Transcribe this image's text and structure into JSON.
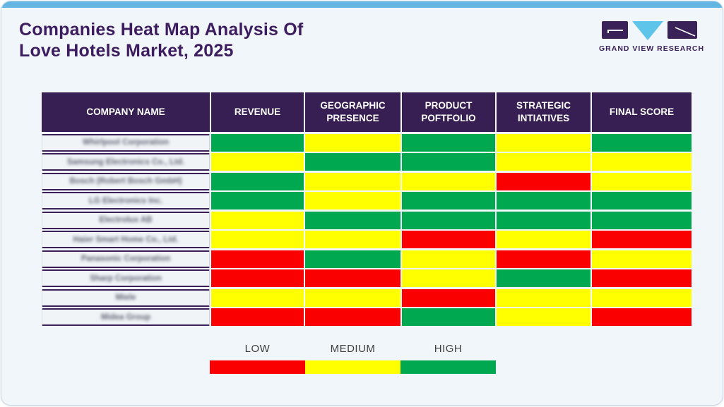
{
  "header": {
    "title_line1": "Companies Heat Map Analysis Of",
    "title_line2": "Love Hotels Market, 2025",
    "logo_text": "GRAND VIEW RESEARCH"
  },
  "table": {
    "columns": [
      "COMPANY NAME",
      "REVENUE",
      "GEOGRAPHIC PRESENCE",
      "PRODUCT POFTFOLIO",
      "STRATEGIC INTIATIVES",
      "FINAL SCORE"
    ],
    "rows": [
      {
        "company": "Whirlpool Corporation",
        "values": [
          "high",
          "medium",
          "high",
          "medium",
          "high"
        ]
      },
      {
        "company": "Samsung Electronics Co., Ltd.",
        "values": [
          "medium",
          "high",
          "high",
          "medium",
          "medium"
        ]
      },
      {
        "company": "Bosch (Robert Bosch GmbH)",
        "values": [
          "high",
          "medium",
          "medium",
          "low",
          "medium"
        ]
      },
      {
        "company": "LG Electronics Inc.",
        "values": [
          "high",
          "medium",
          "high",
          "high",
          "high"
        ]
      },
      {
        "company": "Electrolux AB",
        "values": [
          "medium",
          "high",
          "high",
          "high",
          "high"
        ]
      },
      {
        "company": "Haier Smart Home Co., Ltd.",
        "values": [
          "medium",
          "medium",
          "low",
          "medium",
          "low"
        ]
      },
      {
        "company": "Panasonic Corporation",
        "values": [
          "low",
          "high",
          "medium",
          "low",
          "medium"
        ]
      },
      {
        "company": "Sharp Corporation",
        "values": [
          "low",
          "low",
          "medium",
          "high",
          "low"
        ]
      },
      {
        "company": "Miele",
        "values": [
          "medium",
          "medium",
          "low",
          "medium",
          "medium"
        ]
      },
      {
        "company": "Midea Group",
        "values": [
          "low",
          "low",
          "high",
          "medium",
          "low"
        ]
      }
    ]
  },
  "legend": {
    "items": [
      {
        "key": "low",
        "label": "LOW",
        "color": "#FB0000"
      },
      {
        "key": "medium",
        "label": "MEDIUM",
        "color": "#FFFF00"
      },
      {
        "key": "high",
        "label": "HIGH",
        "color": "#00A94F"
      }
    ]
  },
  "colors": {
    "accent_purple": "#381F53",
    "title_purple": "#3D1D60",
    "topbar_blue": "#63B5E2",
    "logo_cyan": "#5FC4EA",
    "card_bg": "#F1F6FA",
    "card_border": "#C5D7E6",
    "cell_red": "#FB0000",
    "cell_yellow": "#FFFF00",
    "cell_green": "#00A94F"
  },
  "chart_data": {
    "type": "heatmap",
    "title": "Companies Heat Map Analysis Of Love Hotels Market, 2025",
    "x_categories": [
      "REVENUE",
      "GEOGRAPHIC PRESENCE",
      "PRODUCT POFTFOLIO",
      "STRATEGIC INTIATIVES",
      "FINAL SCORE"
    ],
    "y_categories": [
      "Whirlpool Corporation",
      "Samsung Electronics Co., Ltd.",
      "Bosch (Robert Bosch GmbH)",
      "LG Electronics Inc.",
      "Electrolux AB",
      "Haier Smart Home Co., Ltd.",
      "Panasonic Corporation",
      "Sharp Corporation",
      "Miele",
      "Midea Group"
    ],
    "values": [
      [
        "high",
        "medium",
        "high",
        "medium",
        "high"
      ],
      [
        "medium",
        "high",
        "high",
        "medium",
        "medium"
      ],
      [
        "high",
        "medium",
        "medium",
        "low",
        "medium"
      ],
      [
        "high",
        "medium",
        "high",
        "high",
        "high"
      ],
      [
        "medium",
        "high",
        "high",
        "high",
        "high"
      ],
      [
        "medium",
        "medium",
        "low",
        "medium",
        "low"
      ],
      [
        "low",
        "high",
        "medium",
        "low",
        "medium"
      ],
      [
        "low",
        "low",
        "medium",
        "high",
        "low"
      ],
      [
        "medium",
        "medium",
        "low",
        "medium",
        "medium"
      ],
      [
        "low",
        "low",
        "high",
        "medium",
        "low"
      ]
    ],
    "scale": [
      "LOW",
      "MEDIUM",
      "HIGH"
    ],
    "scale_colors": [
      "#FB0000",
      "#FFFF00",
      "#00A94F"
    ],
    "legend_position": "bottom"
  }
}
